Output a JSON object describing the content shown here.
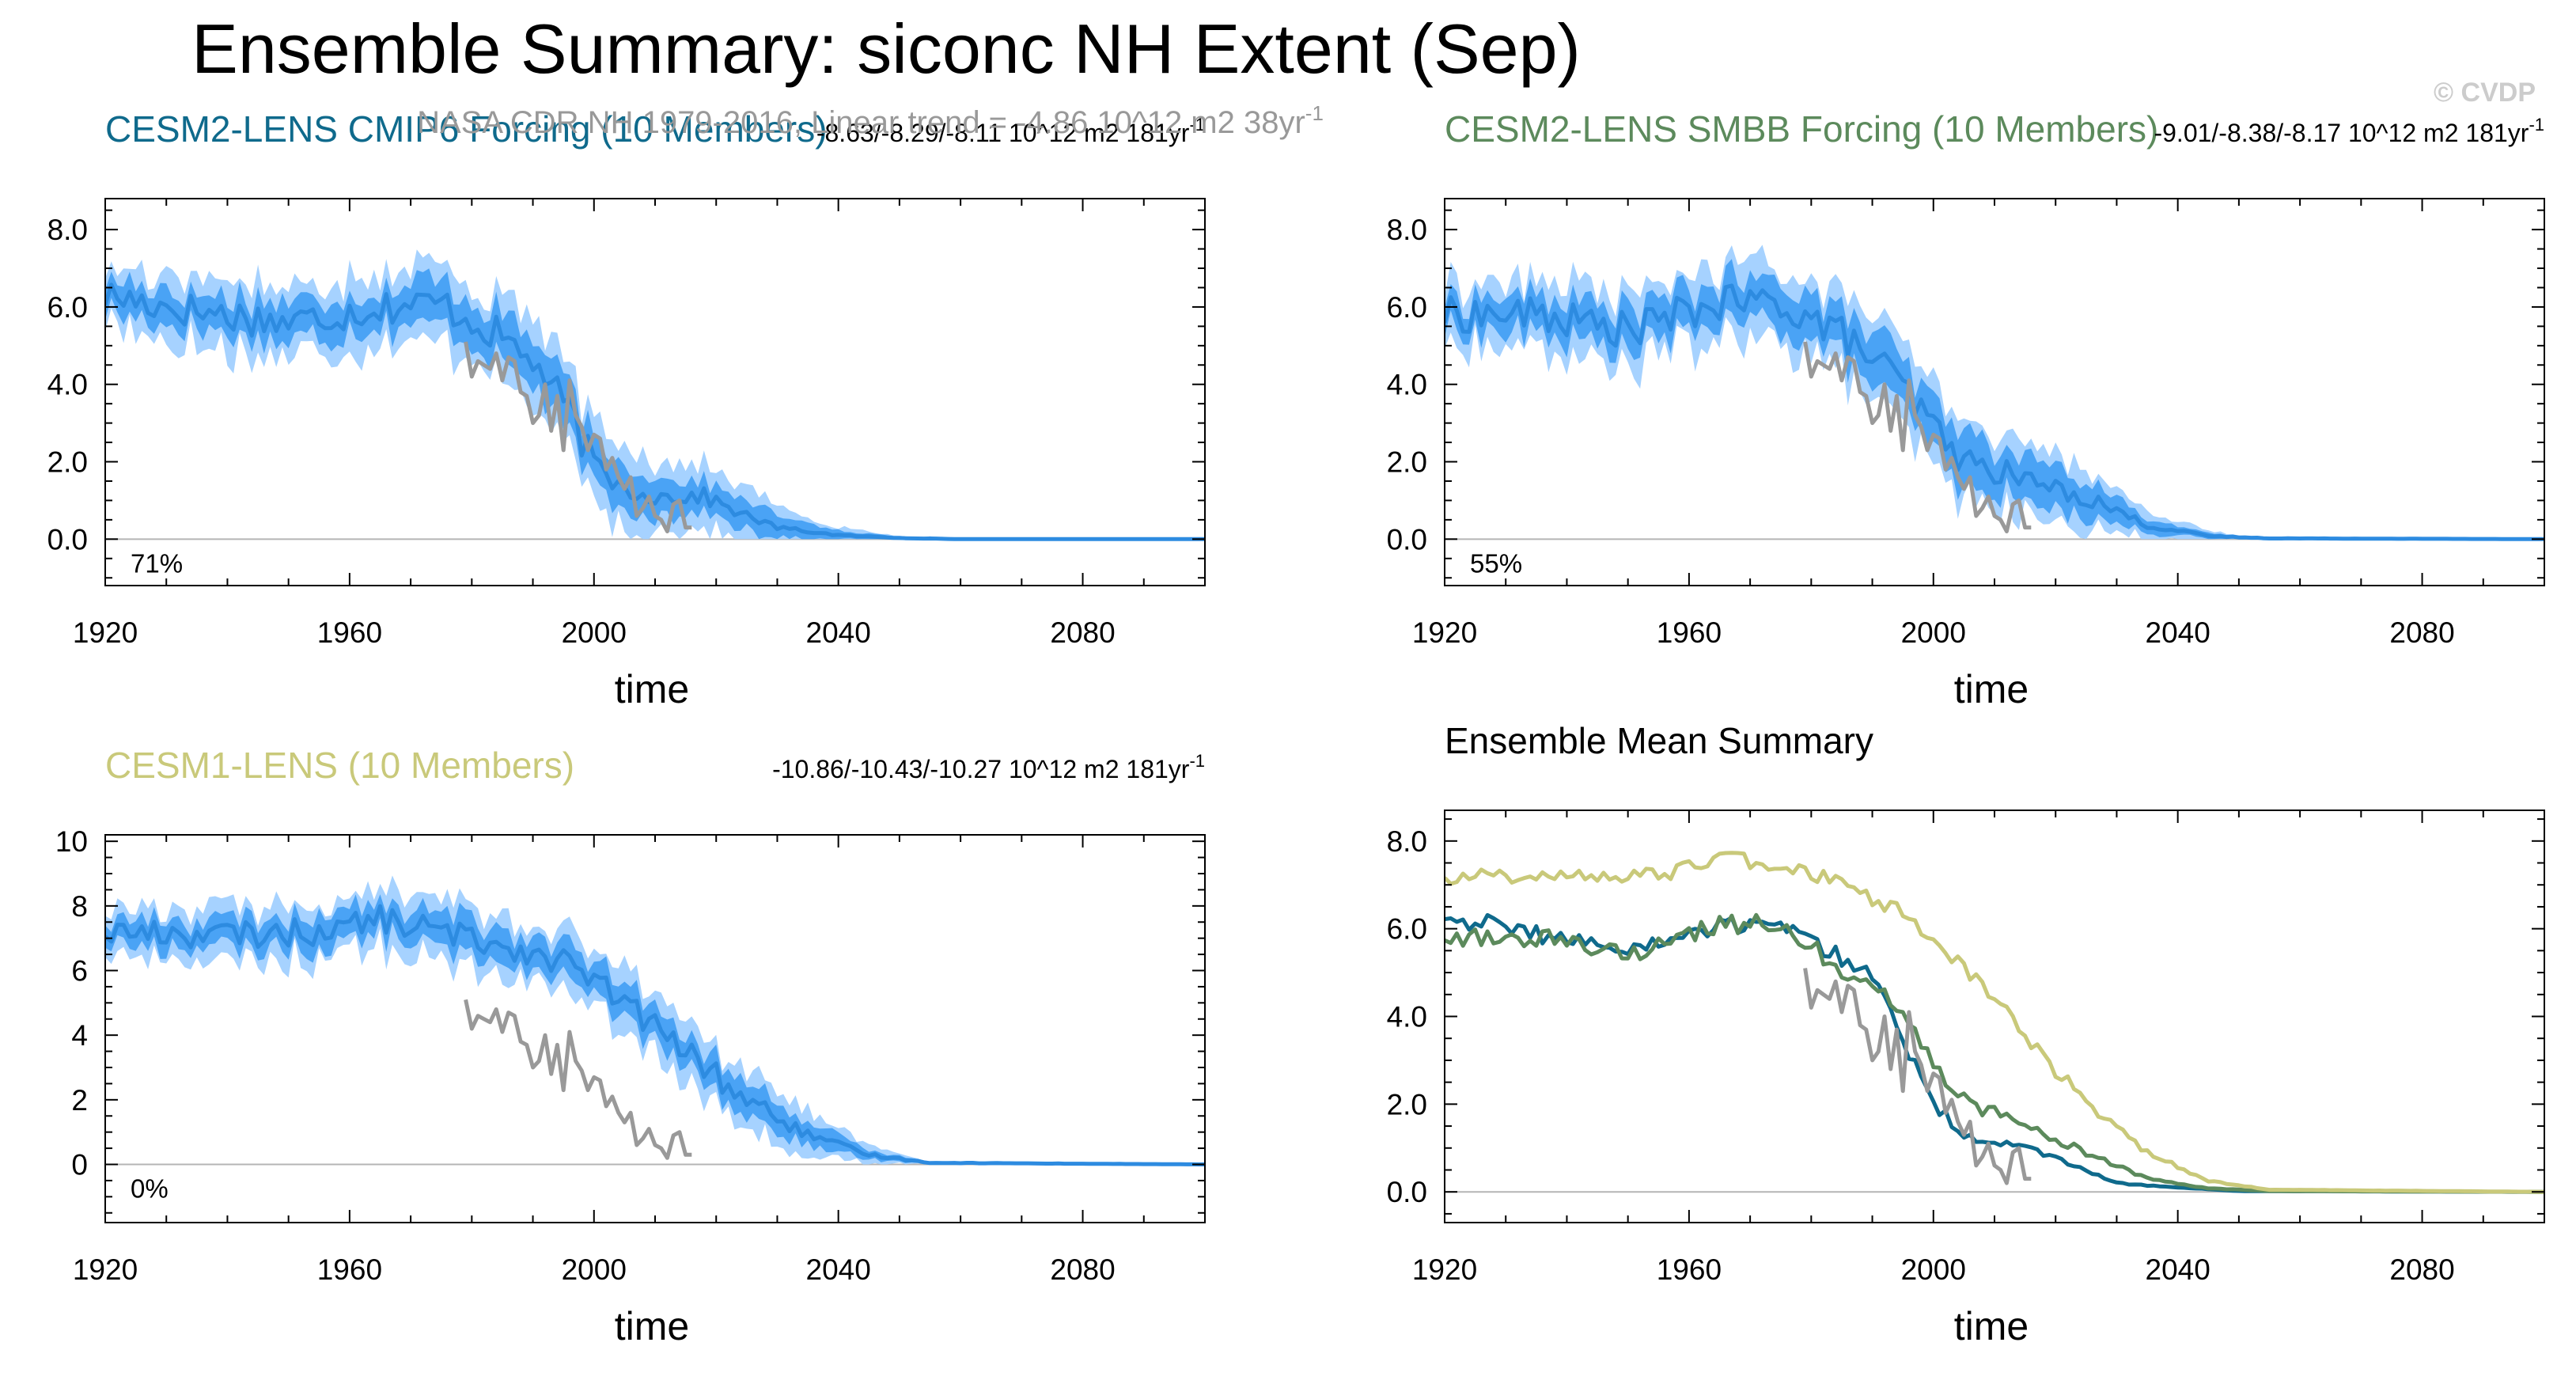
{
  "page": {
    "title": "Ensemble Summary: siconc NH Extent (Sep)",
    "watermark": "© CVDP",
    "obs_caption": "NASA CDR NH 1979-2016, Linear trend = -4.86 10^12 m2 38yr",
    "obs_caption_sup": "-1"
  },
  "colors": {
    "ens_band_outer": "#a6d2ff",
    "ens_band_inner": "#4aa3f5",
    "ens_mean": "#2d8be0",
    "obs": "#999999",
    "cesm2_cmip6": "#0f6a8c",
    "cesm2_smbb": "#5c8a5c",
    "cesm1": "#c9c97a",
    "axis": "#000000",
    "zero_line": "#b5b5b5",
    "watermark": "#cccccc"
  },
  "chart_data": [
    {
      "type": "line",
      "id": "p1",
      "title": "CESM2-LENS CMIP6 Forcing (10 Members)",
      "title_color": "#0f6a8c",
      "trend_text": "-8.63/-8.29/-8.11 10^12 m2 181yr",
      "trend_sup": "-1",
      "pct": "71%",
      "xlabel": "time",
      "xlim": [
        1920,
        2100
      ],
      "ylim": [
        -1.2,
        8.8
      ],
      "yticks": [
        0,
        2,
        4,
        6,
        8
      ],
      "ytick_labels": [
        "0.0",
        "2.0",
        "4.0",
        "6.0",
        "8.0"
      ],
      "xticks": [
        1920,
        1960,
        2000,
        2040,
        2080
      ],
      "series_mean": [
        [
          1920,
          6.3
        ],
        [
          1935,
          5.9
        ],
        [
          1950,
          5.6
        ],
        [
          1965,
          6.0
        ],
        [
          1975,
          6.1
        ],
        [
          1985,
          5.2
        ],
        [
          1990,
          4.6
        ],
        [
          1996,
          3.3
        ],
        [
          2000,
          1.9
        ],
        [
          2005,
          1.3
        ],
        [
          2010,
          1.1
        ],
        [
          2018,
          1.1
        ],
        [
          2025,
          0.6
        ],
        [
          2030,
          0.3
        ],
        [
          2040,
          0.1
        ],
        [
          2050,
          0.03
        ],
        [
          2060,
          0.0
        ],
        [
          2100,
          0.0
        ]
      ],
      "band_inner": {
        "hw": [
          [
            1920,
            0.45
          ],
          [
            1990,
            0.6
          ],
          [
            2005,
            0.55
          ],
          [
            2025,
            0.4
          ],
          [
            2040,
            0.12
          ],
          [
            2050,
            0.03
          ],
          [
            2100,
            0.0
          ]
        ]
      },
      "band_outer": {
        "hw": [
          [
            1920,
            0.8
          ],
          [
            1990,
            1.05
          ],
          [
            2005,
            1.0
          ],
          [
            2025,
            0.7
          ],
          [
            2040,
            0.22
          ],
          [
            2050,
            0.05
          ],
          [
            2100,
            0.0
          ]
        ]
      },
      "noise_amp": 0.45
    },
    {
      "type": "line",
      "id": "p2",
      "title": "CESM2-LENS SMBB Forcing (10 Members)",
      "title_color": "#5c8a5c",
      "trend_text": "-9.01/-8.38/-8.17 10^12 m2 181yr",
      "trend_sup": "-1",
      "pct": "55%",
      "xlabel": "time",
      "xlim": [
        1920,
        2100
      ],
      "ylim": [
        -1.2,
        8.8
      ],
      "yticks": [
        0,
        2,
        4,
        6,
        8
      ],
      "ytick_labels": [
        "0.0",
        "2.0",
        "4.0",
        "6.0",
        "8.0"
      ],
      "xticks": [
        1920,
        1960,
        2000,
        2040,
        2080
      ],
      "series_mean": [
        [
          1920,
          5.8
        ],
        [
          1935,
          5.8
        ],
        [
          1950,
          5.4
        ],
        [
          1965,
          6.1
        ],
        [
          1975,
          6.1
        ],
        [
          1985,
          5.3
        ],
        [
          1993,
          4.3
        ],
        [
          2000,
          2.9
        ],
        [
          2005,
          2.0
        ],
        [
          2012,
          1.7
        ],
        [
          2020,
          1.3
        ],
        [
          2028,
          0.9
        ],
        [
          2035,
          0.35
        ],
        [
          2045,
          0.08
        ],
        [
          2055,
          0.02
        ],
        [
          2100,
          0.0
        ]
      ],
      "band_inner": {
        "hw": [
          [
            1920,
            0.45
          ],
          [
            1990,
            0.6
          ],
          [
            2010,
            0.6
          ],
          [
            2025,
            0.45
          ],
          [
            2040,
            0.12
          ],
          [
            2050,
            0.03
          ],
          [
            2100,
            0.0
          ]
        ]
      },
      "band_outer": {
        "hw": [
          [
            1920,
            0.8
          ],
          [
            1990,
            1.05
          ],
          [
            2010,
            1.05
          ],
          [
            2025,
            0.75
          ],
          [
            2040,
            0.22
          ],
          [
            2050,
            0.05
          ],
          [
            2100,
            0.0
          ]
        ]
      },
      "noise_amp": 0.45
    },
    {
      "type": "line",
      "id": "p3",
      "title": "CESM1-LENS (10 Members)",
      "title_color": "#c9c97a",
      "trend_text": "-10.86/-10.43/-10.27 10^12 m2 181yr",
      "trend_sup": "-1",
      "pct": "0%",
      "xlabel": "time",
      "xlim": [
        1920,
        2100
      ],
      "ylim": [
        -1.8,
        10.2
      ],
      "yticks": [
        0,
        2,
        4,
        6,
        8,
        10
      ],
      "ytick_labels": [
        "0",
        "2",
        "4",
        "6",
        "8",
        "10"
      ],
      "xticks": [
        1920,
        1960,
        2000,
        2040,
        2080
      ],
      "series_mean": [
        [
          1920,
          7.2
        ],
        [
          1940,
          7.1
        ],
        [
          1955,
          7.2
        ],
        [
          1965,
          7.6
        ],
        [
          1975,
          7.2
        ],
        [
          1985,
          6.8
        ],
        [
          1995,
          6.3
        ],
        [
          2005,
          5.0
        ],
        [
          2015,
          3.5
        ],
        [
          2025,
          2.0
        ],
        [
          2035,
          0.9
        ],
        [
          2045,
          0.3
        ],
        [
          2055,
          0.05
        ],
        [
          2100,
          0.0
        ]
      ],
      "band_inner": {
        "hw": [
          [
            1920,
            0.4
          ],
          [
            2000,
            0.55
          ],
          [
            2030,
            0.5
          ],
          [
            2045,
            0.15
          ],
          [
            2055,
            0.03
          ],
          [
            2100,
            0.0
          ]
        ]
      },
      "band_outer": {
        "hw": [
          [
            1920,
            0.75
          ],
          [
            2000,
            1.0
          ],
          [
            2030,
            0.9
          ],
          [
            2045,
            0.28
          ],
          [
            2055,
            0.05
          ],
          [
            2100,
            0.0
          ]
        ]
      },
      "noise_amp": 0.4
    },
    {
      "type": "line",
      "id": "p4",
      "title": "Ensemble Mean Summary",
      "title_color": "#000000",
      "xlabel": "time",
      "xlim": [
        1920,
        2100
      ],
      "ylim": [
        -0.7,
        8.7
      ],
      "yticks": [
        0,
        2,
        4,
        6,
        8
      ],
      "ytick_labels": [
        "0.0",
        "2.0",
        "4.0",
        "6.0",
        "8.0"
      ],
      "xticks": [
        1920,
        1960,
        2000,
        2040,
        2080
      ],
      "series": [
        {
          "name": "CESM2-LENS CMIP6 Forcing",
          "color": "#0f6a8c",
          "noise": 0.22,
          "points": [
            [
              1920,
              6.3
            ],
            [
              1935,
              5.9
            ],
            [
              1950,
              5.5
            ],
            [
              1965,
              6.0
            ],
            [
              1975,
              6.2
            ],
            [
              1985,
              5.3
            ],
            [
              1990,
              5.0
            ],
            [
              1995,
              3.5
            ],
            [
              2000,
              2.0
            ],
            [
              2005,
              1.3
            ],
            [
              2015,
              1.0
            ],
            [
              2025,
              0.5
            ],
            [
              2030,
              0.2
            ],
            [
              2040,
              0.1
            ],
            [
              2050,
              0.02
            ],
            [
              2100,
              0.0
            ]
          ]
        },
        {
          "name": "CESM2-LENS SMBB Forcing",
          "color": "#5c8a5c",
          "noise": 0.22,
          "points": [
            [
              1920,
              5.8
            ],
            [
              1935,
              5.8
            ],
            [
              1950,
              5.4
            ],
            [
              1965,
              6.1
            ],
            [
              1975,
              6.1
            ],
            [
              1985,
              5.1
            ],
            [
              1995,
              4.2
            ],
            [
              2000,
              2.8
            ],
            [
              2008,
              1.9
            ],
            [
              2015,
              1.5
            ],
            [
              2025,
              0.9
            ],
            [
              2035,
              0.3
            ],
            [
              2045,
              0.08
            ],
            [
              2055,
              0.02
            ],
            [
              2100,
              0.0
            ]
          ]
        },
        {
          "name": "CESM1-LENS",
          "color": "#c9c97a",
          "noise": 0.18,
          "points": [
            [
              1920,
              7.2
            ],
            [
              1940,
              7.2
            ],
            [
              1955,
              7.2
            ],
            [
              1965,
              7.6
            ],
            [
              1975,
              7.5
            ],
            [
              1985,
              7.0
            ],
            [
              1995,
              6.4
            ],
            [
              2005,
              5.1
            ],
            [
              2015,
              3.6
            ],
            [
              2025,
              2.0
            ],
            [
              2035,
              0.9
            ],
            [
              2045,
              0.25
            ],
            [
              2055,
              0.05
            ],
            [
              2100,
              0.0
            ]
          ]
        }
      ]
    }
  ],
  "obs_series": {
    "name": "NASA CDR NH 1979-2016",
    "x": [
      1979,
      1980,
      1981,
      1982,
      1983,
      1984,
      1985,
      1986,
      1987,
      1988,
      1989,
      1990,
      1991,
      1992,
      1993,
      1994,
      1995,
      1996,
      1997,
      1998,
      1999,
      2000,
      2001,
      2002,
      2003,
      2004,
      2005,
      2006,
      2007,
      2008,
      2009,
      2010,
      2011,
      2012,
      2013,
      2014,
      2015,
      2016
    ],
    "y": [
      5.1,
      4.2,
      4.6,
      4.5,
      4.4,
      4.8,
      4.1,
      4.7,
      4.6,
      3.8,
      3.7,
      3.0,
      3.2,
      4.0,
      2.8,
      3.7,
      2.3,
      4.1,
      3.2,
      2.9,
      2.3,
      2.7,
      2.6,
      1.8,
      2.1,
      1.6,
      1.3,
      1.6,
      0.6,
      0.8,
      1.1,
      0.6,
      0.5,
      0.2,
      0.9,
      1.0,
      0.3,
      0.3
    ]
  }
}
